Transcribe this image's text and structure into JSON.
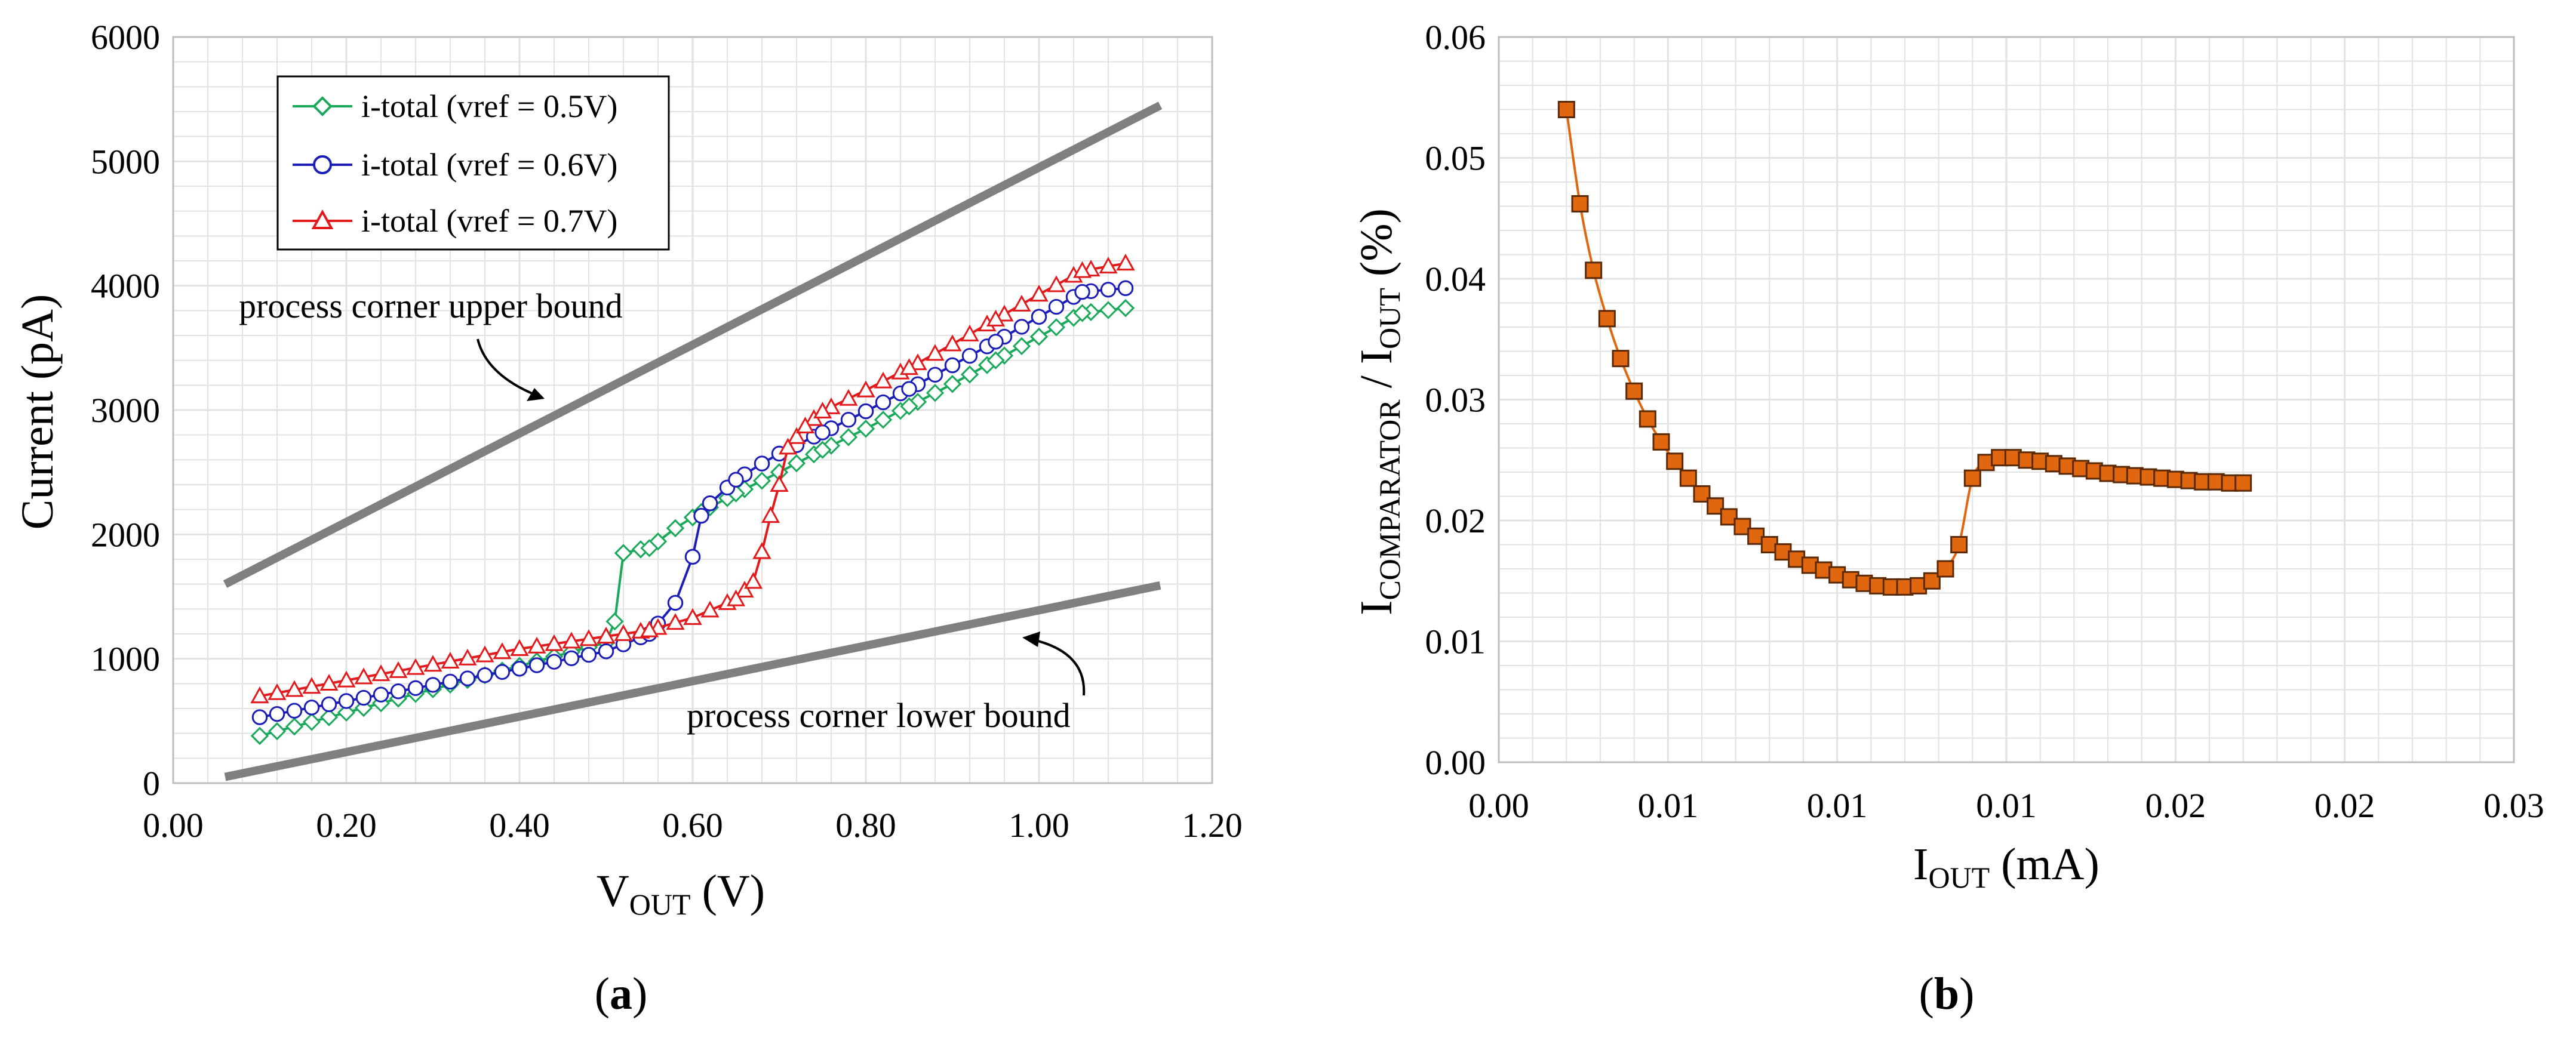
{
  "colors": {
    "green": "#1aa95a",
    "blue": "#1d1db8",
    "red": "#e31a1c",
    "gray": "#808080",
    "orange_fill": "#e0660f",
    "orange_line": "#e0660f",
    "grid": "#e2e2e2"
  },
  "panels": {
    "a": {
      "label_open": "(",
      "label_letter": "a",
      "label_close": ")",
      "ylabel": "Current (pA)",
      "xlabel_main": "V",
      "xlabel_sub": "OUT",
      "xlabel_unit": " (V)",
      "annot_upper": "process corner upper bound",
      "annot_lower": "process corner lower bound"
    },
    "b": {
      "label_open": "(",
      "label_letter": "b",
      "label_close": ")",
      "ylabel_I1": "I",
      "ylabel_sub1": "COMPARATOR",
      "ylabel_mid": " / I",
      "ylabel_sub2": "OUT",
      "ylabel_unit": " (%)",
      "xlabel_main": "I",
      "xlabel_sub": "OUT",
      "xlabel_unit": " (mA)"
    }
  },
  "chart_data": [
    {
      "type": "line",
      "panel": "a",
      "xlabel": "VOUT (V)",
      "ylabel": "Current (pA)",
      "xlim": [
        0,
        1.2
      ],
      "ylim": [
        0,
        6000
      ],
      "xticks": [
        "0.00",
        "0.20",
        "0.40",
        "0.60",
        "0.80",
        "1.00",
        "1.20"
      ],
      "yticks": [
        "0",
        "1000",
        "2000",
        "3000",
        "4000",
        "5000",
        "6000"
      ],
      "legend_position": "top-left",
      "series": [
        {
          "name": "i-total (vref = 0.5V)",
          "marker": "diamond",
          "color": "#1aa95a",
          "x": [
            0.1,
            0.5,
            0.51,
            0.52,
            0.54,
            0.55,
            0.58,
            0.61,
            0.65,
            0.7,
            0.75,
            0.8,
            0.85,
            0.9,
            0.95,
            1.0,
            1.05,
            1.1
          ],
          "y": [
            380,
            1130,
            1300,
            1850,
            1880,
            1890,
            2050,
            2180,
            2330,
            2500,
            2680,
            2850,
            3030,
            3210,
            3400,
            3590,
            3780,
            3820
          ]
        },
        {
          "name": "i-total (vref = 0.6V)",
          "marker": "circle",
          "color": "#1d1db8",
          "x": [
            0.1,
            0.4,
            0.5,
            0.55,
            0.58,
            0.6,
            0.61,
            0.62,
            0.65,
            0.68,
            0.7,
            0.75,
            0.8,
            0.85,
            0.9,
            0.95,
            1.0,
            1.05,
            1.1
          ],
          "y": [
            530,
            920,
            1060,
            1200,
            1450,
            1820,
            2150,
            2250,
            2440,
            2570,
            2650,
            2820,
            2990,
            3170,
            3360,
            3550,
            3750,
            3950,
            3980
          ]
        },
        {
          "name": "i-total (vref = 0.7V)",
          "marker": "triangle",
          "color": "#e31a1c",
          "x": [
            0.1,
            0.4,
            0.5,
            0.55,
            0.6,
            0.65,
            0.67,
            0.68,
            0.69,
            0.7,
            0.71,
            0.73,
            0.75,
            0.8,
            0.85,
            0.9,
            0.95,
            1.0,
            1.05,
            1.1
          ],
          "y": [
            700,
            1080,
            1180,
            1230,
            1330,
            1480,
            1620,
            1860,
            2150,
            2400,
            2700,
            2870,
            2990,
            3160,
            3340,
            3530,
            3730,
            3930,
            4120,
            4180
          ]
        },
        {
          "name": "process corner upper bound",
          "marker": "none",
          "color": "#808080",
          "x": [
            0.06,
            1.14
          ],
          "y": [
            1600,
            5450
          ]
        },
        {
          "name": "process corner lower bound",
          "marker": "none",
          "color": "#808080",
          "x": [
            0.06,
            1.14
          ],
          "y": [
            50,
            1590
          ]
        }
      ],
      "annotations": [
        "process corner upper bound",
        "process corner lower bound"
      ]
    },
    {
      "type": "line",
      "panel": "b",
      "xlabel": "IOUT (mA)",
      "ylabel": "ICOMPARATOR / IOUT (%)",
      "xlim": [
        0,
        0.03
      ],
      "ylim": [
        0,
        0.06
      ],
      "xticks": [
        "0.00",
        "0.01",
        "0.01",
        "0.01",
        "0.02",
        "0.02",
        "0.03"
      ],
      "yticks": [
        "0.00",
        "0.01",
        "0.02",
        "0.03",
        "0.04",
        "0.05",
        "0.06"
      ],
      "series": [
        {
          "name": "ICOMPARATOR / IOUT",
          "marker": "square",
          "color": "#e0660f",
          "x": [
            0.002,
            0.0024,
            0.0028,
            0.0032,
            0.0036,
            0.004,
            0.0044,
            0.0048,
            0.0052,
            0.0056,
            0.006,
            0.0064,
            0.0068,
            0.0072,
            0.0076,
            0.008,
            0.0084,
            0.0088,
            0.0092,
            0.0096,
            0.01,
            0.0104,
            0.0108,
            0.0112,
            0.0116,
            0.012,
            0.0124,
            0.0128,
            0.0132,
            0.0136,
            0.014,
            0.0144,
            0.0148,
            0.0152,
            0.0156,
            0.016,
            0.0164,
            0.0168,
            0.0172,
            0.0176,
            0.018,
            0.0184,
            0.0188,
            0.0192,
            0.0196,
            0.02,
            0.0204,
            0.0208,
            0.0212,
            0.0216,
            0.022
          ],
          "y": [
            0.054,
            0.0462,
            0.0407,
            0.0367,
            0.0334,
            0.0307,
            0.0284,
            0.0265,
            0.0249,
            0.0235,
            0.0222,
            0.0212,
            0.0203,
            0.0195,
            0.0187,
            0.018,
            0.0174,
            0.0168,
            0.0163,
            0.0159,
            0.0155,
            0.0151,
            0.0148,
            0.0146,
            0.0145,
            0.0145,
            0.0146,
            0.015,
            0.016,
            0.018,
            0.0235,
            0.0248,
            0.0252,
            0.0252,
            0.025,
            0.0249,
            0.0247,
            0.0245,
            0.0243,
            0.0241,
            0.0239,
            0.0238,
            0.0237,
            0.0236,
            0.0235,
            0.0234,
            0.0233,
            0.0232,
            0.0232,
            0.0231,
            0.0231
          ]
        }
      ]
    }
  ]
}
